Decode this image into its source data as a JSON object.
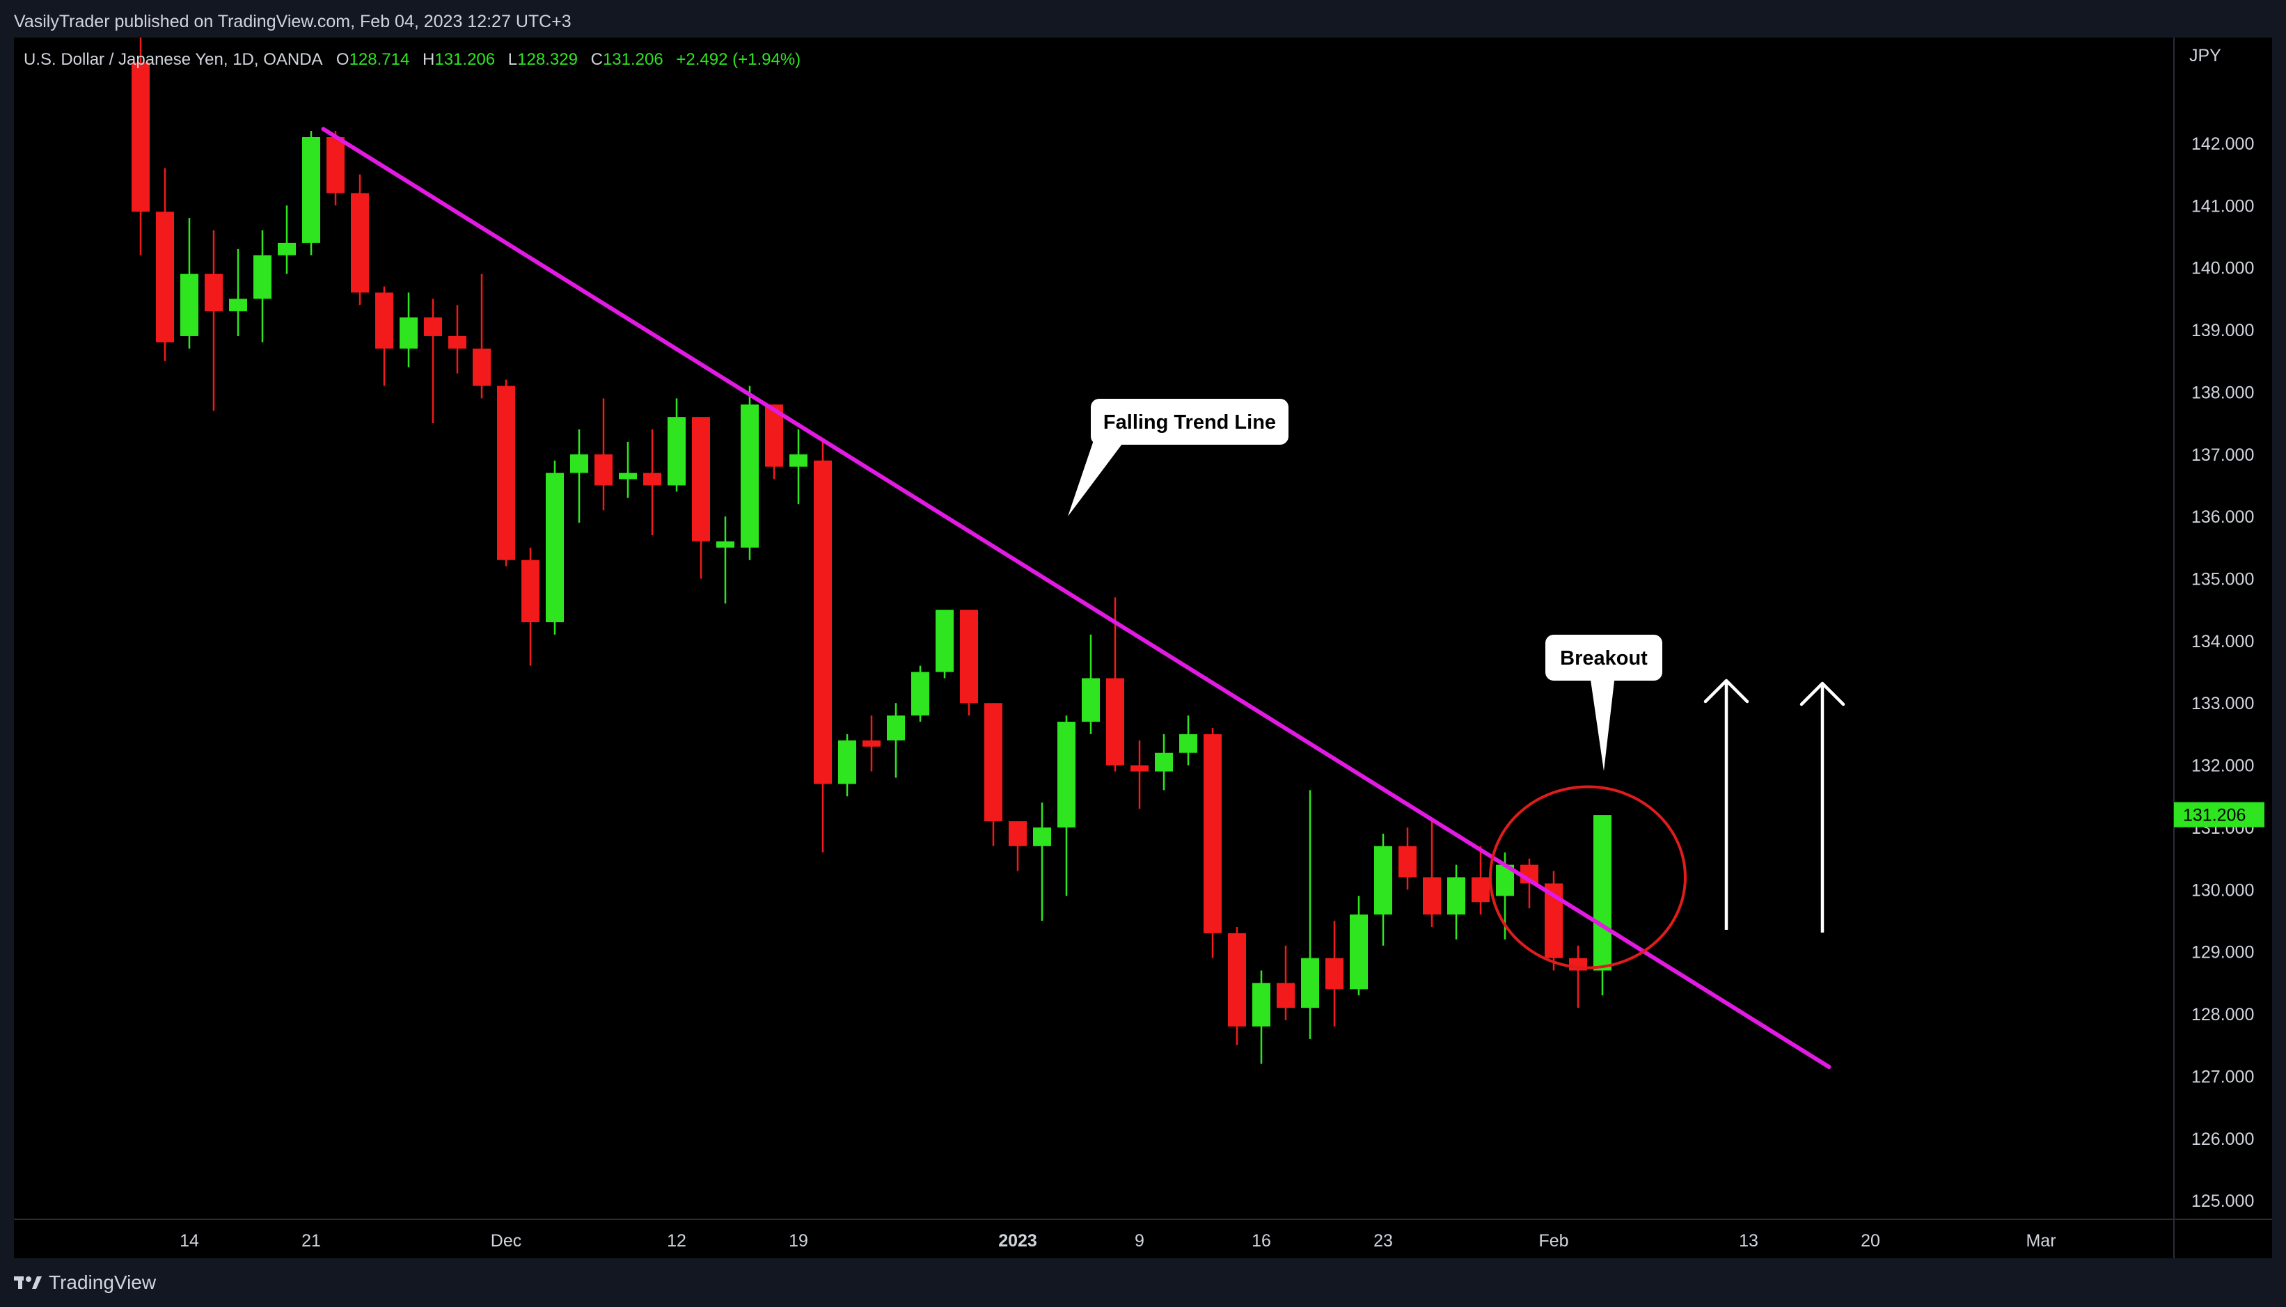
{
  "header": {
    "publish_line": "VasilyTrader published on TradingView.com, Feb 04, 2023 12:27 UTC+3"
  },
  "legend": {
    "symbol": "U.S. Dollar / Japanese Yen, 1D, OANDA",
    "open_label": "O",
    "open": "128.714",
    "high_label": "H",
    "high": "131.206",
    "low_label": "L",
    "low": "128.329",
    "close_label": "C",
    "close": "131.206",
    "change": "+2.492 (+1.94%)"
  },
  "footer": {
    "brand": "TradingView"
  },
  "colors": {
    "up": "#2ee51f",
    "down": "#f21a1a",
    "trend_line": "#e31ae3",
    "circle": "#e01c1c",
    "arrows": "#ffffff",
    "price_tag": "#2ee51f"
  },
  "chart_data": {
    "type": "candlestick",
    "currency_label": "JPY",
    "ylim": [
      124.7,
      143.7
    ],
    "y_ticks": [
      "125.000",
      "126.000",
      "127.000",
      "128.000",
      "129.000",
      "130.000",
      "131.000",
      "132.000",
      "133.000",
      "134.000",
      "135.000",
      "136.000",
      "137.000",
      "138.000",
      "139.000",
      "140.000",
      "141.000",
      "142.000"
    ],
    "x_ticks": [
      {
        "label": "14",
        "day": 0,
        "bold": false
      },
      {
        "label": "21",
        "day": 5,
        "bold": false
      },
      {
        "label": "Dec",
        "day": 13,
        "bold": false
      },
      {
        "label": "12",
        "day": 20,
        "bold": false
      },
      {
        "label": "19",
        "day": 25,
        "bold": false
      },
      {
        "label": "2023",
        "day": 34,
        "bold": true
      },
      {
        "label": "9",
        "day": 39,
        "bold": false
      },
      {
        "label": "16",
        "day": 44,
        "bold": false
      },
      {
        "label": "23",
        "day": 49,
        "bold": false
      },
      {
        "label": "Feb",
        "day": 56,
        "bold": false
      },
      {
        "label": "13",
        "day": 64,
        "bold": false
      },
      {
        "label": "20",
        "day": 69,
        "bold": false
      },
      {
        "label": "Mar",
        "day": 76,
        "bold": false
      }
    ],
    "candles": [
      {
        "d": -2,
        "o": 143.3,
        "h": 144.0,
        "l": 140.2,
        "c": 140.9
      },
      {
        "d": -1,
        "o": 140.9,
        "h": 141.6,
        "l": 138.5,
        "c": 138.8
      },
      {
        "d": 0,
        "o": 138.9,
        "h": 140.8,
        "l": 138.7,
        "c": 139.9
      },
      {
        "d": 1,
        "o": 139.9,
        "h": 140.6,
        "l": 137.7,
        "c": 139.3
      },
      {
        "d": 2,
        "o": 139.3,
        "h": 140.3,
        "l": 138.9,
        "c": 139.5
      },
      {
        "d": 3,
        "o": 139.5,
        "h": 140.6,
        "l": 138.8,
        "c": 140.2
      },
      {
        "d": 4,
        "o": 140.2,
        "h": 141.0,
        "l": 139.9,
        "c": 140.4
      },
      {
        "d": 5,
        "o": 140.4,
        "h": 142.2,
        "l": 140.2,
        "c": 142.1
      },
      {
        "d": 6,
        "o": 142.1,
        "h": 142.2,
        "l": 141.0,
        "c": 141.2
      },
      {
        "d": 7,
        "o": 141.2,
        "h": 141.5,
        "l": 139.4,
        "c": 139.6
      },
      {
        "d": 8,
        "o": 139.6,
        "h": 139.7,
        "l": 138.1,
        "c": 138.7
      },
      {
        "d": 9,
        "o": 138.7,
        "h": 139.6,
        "l": 138.4,
        "c": 139.2
      },
      {
        "d": 10,
        "o": 139.2,
        "h": 139.5,
        "l": 137.5,
        "c": 138.9
      },
      {
        "d": 11,
        "o": 138.9,
        "h": 139.4,
        "l": 138.3,
        "c": 138.7
      },
      {
        "d": 12,
        "o": 138.7,
        "h": 139.9,
        "l": 137.9,
        "c": 138.1
      },
      {
        "d": 13,
        "o": 138.1,
        "h": 138.2,
        "l": 135.2,
        "c": 135.3
      },
      {
        "d": 14,
        "o": 135.3,
        "h": 135.5,
        "l": 133.6,
        "c": 134.3
      },
      {
        "d": 15,
        "o": 134.3,
        "h": 136.9,
        "l": 134.1,
        "c": 136.7
      },
      {
        "d": 16,
        "o": 136.7,
        "h": 137.4,
        "l": 135.9,
        "c": 137.0
      },
      {
        "d": 17,
        "o": 137.0,
        "h": 137.9,
        "l": 136.1,
        "c": 136.5
      },
      {
        "d": 18,
        "o": 136.6,
        "h": 137.2,
        "l": 136.3,
        "c": 136.7
      },
      {
        "d": 19,
        "o": 136.7,
        "h": 137.4,
        "l": 135.7,
        "c": 136.5
      },
      {
        "d": 20,
        "o": 136.5,
        "h": 137.9,
        "l": 136.4,
        "c": 137.6
      },
      {
        "d": 21,
        "o": 137.6,
        "h": 137.6,
        "l": 135.0,
        "c": 135.6
      },
      {
        "d": 22,
        "o": 135.5,
        "h": 136.0,
        "l": 134.6,
        "c": 135.6
      },
      {
        "d": 23,
        "o": 135.5,
        "h": 138.1,
        "l": 135.3,
        "c": 137.8
      },
      {
        "d": 24,
        "o": 137.8,
        "h": 137.8,
        "l": 136.6,
        "c": 136.8
      },
      {
        "d": 25,
        "o": 136.8,
        "h": 137.4,
        "l": 136.2,
        "c": 137.0
      },
      {
        "d": 26,
        "o": 136.9,
        "h": 137.2,
        "l": 130.6,
        "c": 131.7
      },
      {
        "d": 27,
        "o": 131.7,
        "h": 132.5,
        "l": 131.5,
        "c": 132.4
      },
      {
        "d": 28,
        "o": 132.4,
        "h": 132.8,
        "l": 131.9,
        "c": 132.3
      },
      {
        "d": 29,
        "o": 132.4,
        "h": 133.0,
        "l": 131.8,
        "c": 132.8
      },
      {
        "d": 30,
        "o": 132.8,
        "h": 133.6,
        "l": 132.7,
        "c": 133.5
      },
      {
        "d": 31,
        "o": 133.5,
        "h": 134.5,
        "l": 133.4,
        "c": 134.5
      },
      {
        "d": 32,
        "o": 134.5,
        "h": 134.5,
        "l": 132.8,
        "c": 133.0
      },
      {
        "d": 33,
        "o": 133.0,
        "h": 133.0,
        "l": 130.7,
        "c": 131.1
      },
      {
        "d": 34,
        "o": 131.1,
        "h": 131.1,
        "l": 130.3,
        "c": 130.7
      },
      {
        "d": 35,
        "o": 130.7,
        "h": 131.4,
        "l": 129.5,
        "c": 131.0
      },
      {
        "d": 36,
        "o": 131.0,
        "h": 132.8,
        "l": 129.9,
        "c": 132.7
      },
      {
        "d": 37,
        "o": 132.7,
        "h": 134.1,
        "l": 132.5,
        "c": 133.4
      },
      {
        "d": 38,
        "o": 133.4,
        "h": 134.7,
        "l": 131.9,
        "c": 132.0
      },
      {
        "d": 39,
        "o": 132.0,
        "h": 132.4,
        "l": 131.3,
        "c": 131.9
      },
      {
        "d": 40,
        "o": 131.9,
        "h": 132.5,
        "l": 131.6,
        "c": 132.2
      },
      {
        "d": 41,
        "o": 132.2,
        "h": 132.8,
        "l": 132.0,
        "c": 132.5
      },
      {
        "d": 42,
        "o": 132.5,
        "h": 132.6,
        "l": 128.9,
        "c": 129.3
      },
      {
        "d": 43,
        "o": 129.3,
        "h": 129.4,
        "l": 127.5,
        "c": 127.8
      },
      {
        "d": 44,
        "o": 127.8,
        "h": 128.7,
        "l": 127.2,
        "c": 128.5
      },
      {
        "d": 45,
        "o": 128.5,
        "h": 129.1,
        "l": 127.9,
        "c": 128.1
      },
      {
        "d": 46,
        "o": 128.1,
        "h": 131.6,
        "l": 127.6,
        "c": 128.9
      },
      {
        "d": 47,
        "o": 128.9,
        "h": 129.5,
        "l": 127.8,
        "c": 128.4
      },
      {
        "d": 48,
        "o": 128.4,
        "h": 129.9,
        "l": 128.3,
        "c": 129.6
      },
      {
        "d": 49,
        "o": 129.6,
        "h": 130.9,
        "l": 129.1,
        "c": 130.7
      },
      {
        "d": 50,
        "o": 130.7,
        "h": 131.0,
        "l": 130.0,
        "c": 130.2
      },
      {
        "d": 51,
        "o": 130.2,
        "h": 131.1,
        "l": 129.4,
        "c": 129.6
      },
      {
        "d": 52,
        "o": 129.6,
        "h": 130.4,
        "l": 129.2,
        "c": 130.2
      },
      {
        "d": 53,
        "o": 130.2,
        "h": 130.7,
        "l": 129.6,
        "c": 129.8
      },
      {
        "d": 54,
        "o": 129.9,
        "h": 130.6,
        "l": 129.2,
        "c": 130.4
      },
      {
        "d": 55,
        "o": 130.4,
        "h": 130.5,
        "l": 129.7,
        "c": 130.1
      },
      {
        "d": 56,
        "o": 130.1,
        "h": 130.3,
        "l": 128.7,
        "c": 128.9
      },
      {
        "d": 57,
        "o": 128.9,
        "h": 129.1,
        "l": 128.1,
        "c": 128.7
      },
      {
        "d": 58,
        "o": 128.7,
        "h": 131.2,
        "l": 128.3,
        "c": 131.2
      }
    ],
    "current_price": "131.206",
    "annotations": {
      "trend_label": "Falling Trend Line",
      "breakout_label": "Breakout"
    }
  }
}
